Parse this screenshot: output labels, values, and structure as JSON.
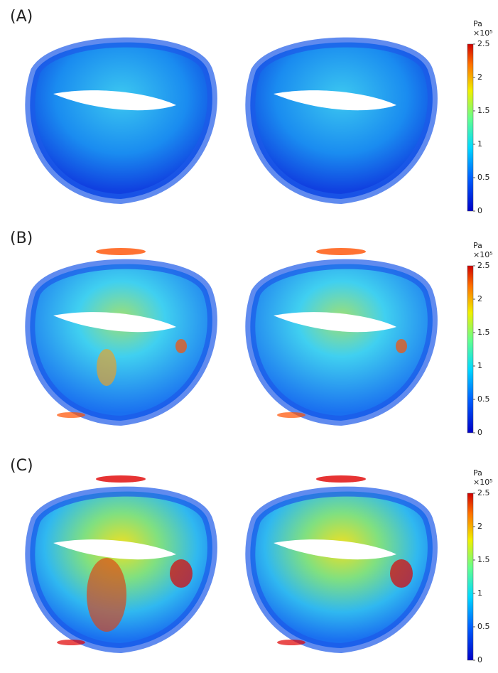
{
  "panels": [
    {
      "label": "(A)",
      "colorbar": {
        "unit": "Pa",
        "scale": "×10⁵",
        "ticks": [
          0,
          0.5,
          1,
          1.5,
          2,
          2.5
        ]
      }
    },
    {
      "label": "(B)",
      "colorbar": {
        "unit": "Pa",
        "scale": "×10⁵",
        "ticks": [
          0,
          0.5,
          1,
          1.5,
          2,
          2.5
        ]
      }
    },
    {
      "label": "(C)",
      "colorbar": {
        "unit": "Pa",
        "scale": "×10⁵",
        "ticks": [
          0,
          0.5,
          1,
          1.5,
          2,
          2.5
        ]
      }
    }
  ]
}
